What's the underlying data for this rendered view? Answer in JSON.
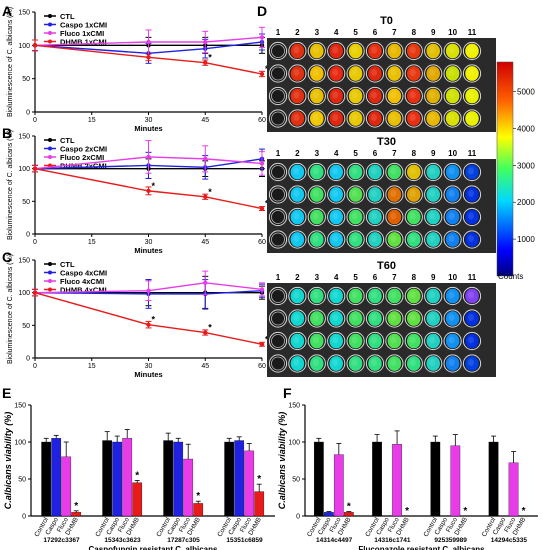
{
  "panel_letters": {
    "A": "A",
    "B": "B",
    "C": "C",
    "D": "D",
    "E": "E",
    "F": "F"
  },
  "colors": {
    "CTL": "#000000",
    "Caspo": "#1f22e0",
    "Fluco": "#e83ce8",
    "DHMB": "#e81b1b"
  },
  "chart_data": [
    {
      "panel": "A",
      "type": "line",
      "ylabel": "Bioluminescence of C. albicans (%)",
      "xlabel": "Minutes",
      "xticks": [
        0,
        15,
        30,
        45,
        60
      ],
      "yticks": [
        0,
        50,
        100,
        150
      ],
      "xlim": [
        0,
        60
      ],
      "ylim": [
        0,
        150
      ],
      "x": [
        0,
        30,
        45,
        60
      ],
      "series": [
        {
          "name": "CTL",
          "values": [
            100,
            100,
            100,
            100
          ],
          "err": [
            8,
            12,
            12,
            12
          ],
          "star": [
            false,
            false,
            false,
            false
          ]
        },
        {
          "name": "Caspo 1xCMI",
          "values": [
            100,
            88,
            95,
            105
          ],
          "err": [
            8,
            15,
            14,
            12
          ],
          "star": [
            false,
            false,
            false,
            false
          ]
        },
        {
          "name": "Fluco 1xCMI",
          "values": [
            100,
            105,
            105,
            112
          ],
          "err": [
            8,
            18,
            16,
            15
          ],
          "star": [
            false,
            false,
            false,
            false
          ]
        },
        {
          "name": "DHMB 1xCMI",
          "values": [
            100,
            82,
            74,
            57
          ],
          "err": [
            8,
            5,
            4,
            4
          ],
          "star": [
            false,
            false,
            true,
            true
          ]
        }
      ]
    },
    {
      "panel": "B",
      "type": "line",
      "ylabel": "Bioluminescence of C. albicans (%)",
      "xlabel": "Minutes",
      "xticks": [
        0,
        15,
        30,
        45,
        60
      ],
      "yticks": [
        0,
        50,
        100,
        150
      ],
      "xlim": [
        0,
        60
      ],
      "ylim": [
        0,
        150
      ],
      "x": [
        0,
        30,
        45,
        60
      ],
      "series": [
        {
          "name": "CTL",
          "values": [
            100,
            100,
            100,
            100
          ],
          "err": [
            5,
            15,
            12,
            12
          ],
          "star": [
            false,
            false,
            false,
            false
          ]
        },
        {
          "name": "Caspo 2xCMI",
          "values": [
            100,
            105,
            102,
            115
          ],
          "err": [
            5,
            20,
            18,
            15
          ],
          "star": [
            false,
            false,
            false,
            false
          ]
        },
        {
          "name": "Fluco 2xCMI",
          "values": [
            100,
            118,
            115,
            108
          ],
          "err": [
            5,
            25,
            20,
            18
          ],
          "star": [
            false,
            false,
            false,
            false
          ]
        },
        {
          "name": "DHMB 2xCMI",
          "values": [
            100,
            66,
            57,
            39
          ],
          "err": [
            5,
            6,
            4,
            3
          ],
          "star": [
            false,
            true,
            true,
            true
          ]
        }
      ]
    },
    {
      "panel": "C",
      "type": "line",
      "ylabel": "Bioluminescence of C. albicans (%)",
      "xlabel": "Minutes",
      "xticks": [
        0,
        15,
        30,
        45,
        60
      ],
      "yticks": [
        0,
        50,
        100,
        150
      ],
      "xlim": [
        0,
        60
      ],
      "ylim": [
        0,
        150
      ],
      "x": [
        0,
        30,
        45,
        60
      ],
      "series": [
        {
          "name": "CTL",
          "values": [
            100,
            100,
            100,
            100
          ],
          "err": [
            5,
            20,
            25,
            10
          ],
          "star": [
            false,
            false,
            false,
            false
          ]
        },
        {
          "name": "Caspo 4xCMI",
          "values": [
            100,
            98,
            98,
            103
          ],
          "err": [
            5,
            22,
            22,
            10
          ],
          "star": [
            false,
            false,
            false,
            false
          ]
        },
        {
          "name": "Fluco 4xCMI",
          "values": [
            100,
            103,
            115,
            105
          ],
          "err": [
            5,
            15,
            18,
            10
          ],
          "star": [
            false,
            false,
            false,
            false
          ]
        },
        {
          "name": "DHMB 4xCMI",
          "values": [
            100,
            51,
            39,
            21
          ],
          "err": [
            5,
            5,
            4,
            3
          ],
          "star": [
            false,
            true,
            true,
            true
          ]
        }
      ]
    },
    {
      "panel": "E",
      "type": "bar",
      "ylabel": "C.albicans viability (%)",
      "xlabel": "Caspofungin resistant C. albicans",
      "yticks": [
        0,
        50,
        100,
        150
      ],
      "ylim": [
        0,
        150
      ],
      "bar_labels": [
        "Control",
        "Caspo",
        "Fluco",
        "DHMB"
      ],
      "groups": [
        {
          "name": "17292c3367",
          "values": [
            100,
            105,
            80,
            5
          ],
          "err": [
            5,
            4,
            20,
            2
          ],
          "star": [
            false,
            false,
            false,
            true
          ]
        },
        {
          "name": "15343c3623",
          "values": [
            102,
            100,
            105,
            45
          ],
          "err": [
            12,
            8,
            12,
            3
          ],
          "star": [
            false,
            false,
            false,
            true
          ]
        },
        {
          "name": "17287c305",
          "values": [
            102,
            100,
            77,
            17
          ],
          "err": [
            10,
            5,
            20,
            3
          ],
          "star": [
            false,
            false,
            false,
            true
          ]
        },
        {
          "name": "15351c6859",
          "values": [
            100,
            102,
            88,
            33
          ],
          "err": [
            5,
            5,
            10,
            10
          ],
          "star": [
            false,
            false,
            false,
            true
          ]
        }
      ]
    },
    {
      "panel": "F",
      "type": "bar",
      "ylabel": "C.albicans viability (%)",
      "xlabel": "Fluconazole resistant C. albicans",
      "yticks": [
        0,
        50,
        100,
        150
      ],
      "ylim": [
        0,
        150
      ],
      "bar_labels": [
        "Control",
        "Caspo",
        "Fluco",
        "DHMB"
      ],
      "groups": [
        {
          "name": "14314c4497",
          "values": [
            100,
            5,
            83,
            5
          ],
          "err": [
            5,
            1,
            15,
            1
          ],
          "star": [
            false,
            false,
            false,
            true
          ]
        },
        {
          "name": "14316c1741",
          "values": [
            100,
            0,
            97,
            0
          ],
          "err": [
            10,
            0,
            18,
            0
          ],
          "star": [
            false,
            false,
            false,
            true
          ]
        },
        {
          "name": "925359989",
          "values": [
            100,
            0,
            95,
            0
          ],
          "err": [
            8,
            0,
            15,
            0
          ],
          "star": [
            false,
            false,
            false,
            true
          ]
        },
        {
          "name": "14294c5335",
          "values": [
            100,
            0,
            72,
            0
          ],
          "err": [
            8,
            0,
            15,
            0
          ],
          "star": [
            false,
            false,
            false,
            true
          ]
        }
      ]
    },
    {
      "panel": "D",
      "type": "heatmap",
      "plates": [
        {
          "title": "T0"
        },
        {
          "title": "T30"
        },
        {
          "title": "T60"
        }
      ],
      "column_labels": [
        "1",
        "2",
        "3",
        "4",
        "5",
        "6",
        "7",
        "8",
        "9",
        "10",
        "11"
      ],
      "rows": 4,
      "colorbar": {
        "ticks": [
          1000,
          2000,
          3000,
          4000,
          5000
        ],
        "range": [
          0,
          5800
        ],
        "label": "Counts"
      }
    }
  ]
}
